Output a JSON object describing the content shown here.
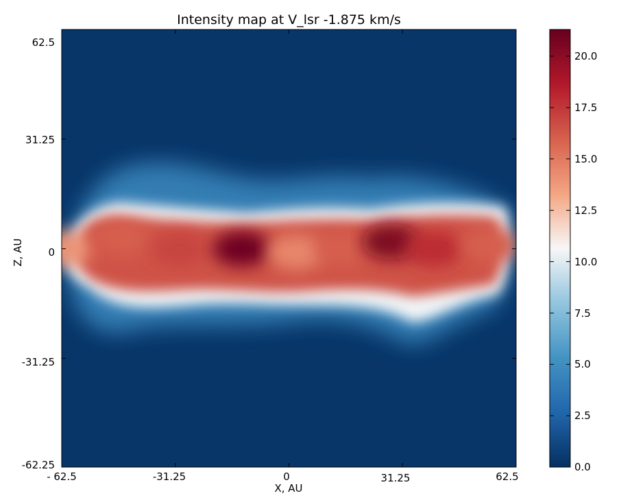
{
  "chart_data": {
    "type": "heatmap",
    "title": "Intensity map at V_lsr -1.875 km/s",
    "xlabel": "X, AU",
    "ylabel": "Z, AU",
    "xlim": [
      -62.5,
      62.5
    ],
    "ylim": [
      -62.25,
      62.5
    ],
    "x_ticks": [
      "- 62.5",
      "-31.25",
      "0",
      "31.25",
      "62.5"
    ],
    "y_ticks": [
      "62.5",
      "31.25",
      "0",
      "-31.25",
      "-62.25"
    ],
    "colorbar": {
      "min": 0.0,
      "max": 21.3,
      "ticks": [
        "0.0",
        "2.5",
        "5.0",
        "7.5",
        "10.0",
        "12.5",
        "15.0",
        "17.5",
        "20.0"
      ],
      "colormap": [
        "#053061",
        "#2166ac",
        "#4393c3",
        "#92c5de",
        "#f7f7f7",
        "#f4a582",
        "#d6604d",
        "#b2182b",
        "#67001f"
      ]
    },
    "features": [
      {
        "x": -62.0,
        "z": 0.0,
        "intensity": 14.0
      },
      {
        "x": -46.0,
        "z": 3.0,
        "intensity": 16.0
      },
      {
        "x": -30.0,
        "z": 0.0,
        "intensity": 17.0
      },
      {
        "x": -13.0,
        "z": 0.0,
        "intensity": 21.0
      },
      {
        "x": 2.0,
        "z": -1.0,
        "intensity": 14.5
      },
      {
        "x": 15.0,
        "z": 0.0,
        "intensity": 16.0
      },
      {
        "x": 28.0,
        "z": 2.0,
        "intensity": 20.5
      },
      {
        "x": 40.0,
        "z": 0.0,
        "intensity": 18.0
      },
      {
        "x": 55.0,
        "z": 1.0,
        "intensity": 16.0
      }
    ]
  }
}
